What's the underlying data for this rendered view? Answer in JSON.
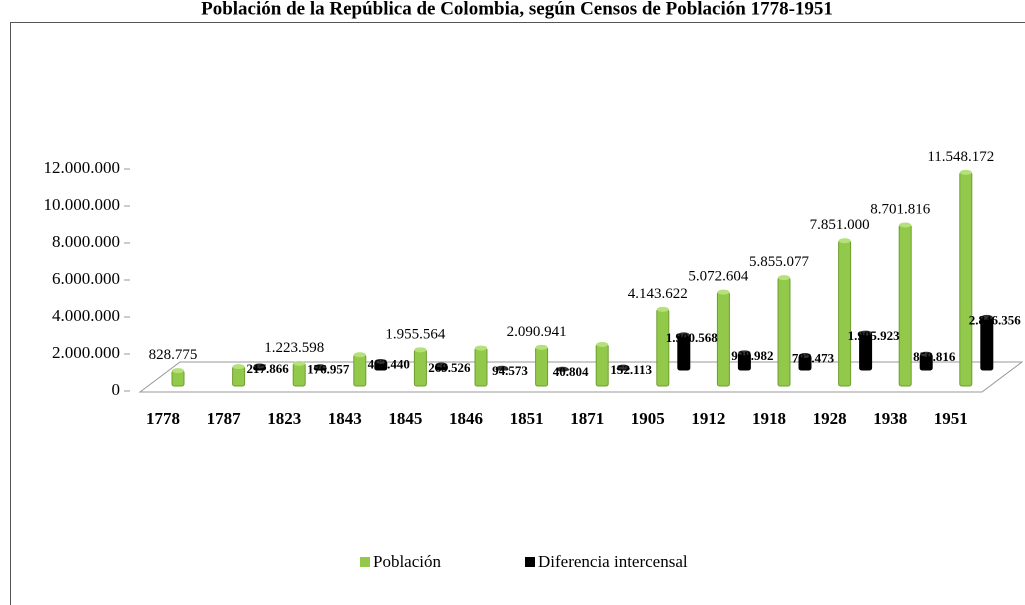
{
  "chart_data": {
    "type": "bar3d",
    "title": "Población de la República de Colombia, según Censos de Población 1778-1951",
    "categories": [
      "1778",
      "1787",
      "1823",
      "1843",
      "1845",
      "1846",
      "1851",
      "1871",
      "1905",
      "1912",
      "1918",
      "1928",
      "1938",
      "1951"
    ],
    "series": [
      {
        "name": "Población",
        "color": "#92c94a",
        "values": [
          828775,
          1046641,
          1223598,
          1686038,
          1955564,
          2050137,
          2090941,
          2243054,
          4143622,
          5072604,
          5855077,
          7851000,
          8701816,
          11548172
        ],
        "value_labels": [
          "828.775",
          null,
          "1.223.598",
          null,
          "1.955.564",
          null,
          "2.090.941",
          null,
          "4.143.622",
          "5.072.604",
          "5.855.077",
          "7.851.000",
          "8.701.816",
          "11.548.172"
        ]
      },
      {
        "name": "Diferencia intercensal",
        "color": "#000000",
        "values": [
          null,
          217866,
          176957,
          462440,
          269526,
          94573,
          40804,
          152113,
          1900568,
          928982,
          782473,
          1995923,
          850816,
          2846356
        ],
        "value_labels": [
          null,
          "217.866",
          "176.957",
          "462.440",
          "269.526",
          "94.573",
          "40.804",
          "152.113",
          "1.900.568",
          "928.982",
          "782.473",
          "1.995.923",
          "850.816",
          "2.846.356"
        ]
      }
    ],
    "ylim": [
      0,
      12000000
    ],
    "yticks": [
      {
        "value": 0,
        "label": "0"
      },
      {
        "value": 2000000,
        "label": "2.000.000"
      },
      {
        "value": 4000000,
        "label": "4.000.000"
      },
      {
        "value": 6000000,
        "label": "6.000.000"
      },
      {
        "value": 8000000,
        "label": "8.000.000"
      },
      {
        "value": 10000000,
        "label": "10.000.000"
      },
      {
        "value": 12000000,
        "label": "12.000.000"
      }
    ],
    "legend": "bottom"
  }
}
